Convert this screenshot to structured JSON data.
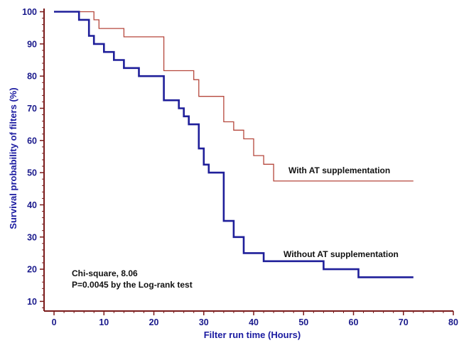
{
  "chart_data": {
    "type": "line",
    "title": "",
    "xlabel": "Filter run time (Hours)",
    "ylabel": "Survival probability of filters (%)",
    "xlim": [
      -2,
      80
    ],
    "ylim": [
      7,
      101
    ],
    "x_ticks": [
      0,
      10,
      20,
      30,
      40,
      50,
      60,
      70,
      80
    ],
    "y_ticks": [
      10,
      20,
      30,
      40,
      50,
      60,
      70,
      80,
      90,
      100
    ],
    "grid": false,
    "step": true,
    "series": [
      {
        "name": "With AT supplementation",
        "color": "#b5473c",
        "line_width": 1.3,
        "points": [
          [
            0,
            100
          ],
          [
            8,
            100
          ],
          [
            8,
            97.5
          ],
          [
            9,
            97.5
          ],
          [
            9,
            94.8
          ],
          [
            14,
            94.8
          ],
          [
            14,
            92.2
          ],
          [
            22,
            92.2
          ],
          [
            22,
            81.7
          ],
          [
            28,
            81.7
          ],
          [
            28,
            78.9
          ],
          [
            29,
            78.9
          ],
          [
            29,
            73.7
          ],
          [
            34,
            73.7
          ],
          [
            34,
            65.8
          ],
          [
            36,
            65.8
          ],
          [
            36,
            63.2
          ],
          [
            38,
            63.2
          ],
          [
            38,
            60.5
          ],
          [
            40,
            60.5
          ],
          [
            40,
            55.3
          ],
          [
            42,
            55.3
          ],
          [
            42,
            52.6
          ],
          [
            44,
            52.6
          ],
          [
            44,
            47.4
          ],
          [
            72,
            47.4
          ]
        ]
      },
      {
        "name": "Without AT supplementation",
        "color": "#1f1f9a",
        "line_width": 2.6,
        "points": [
          [
            0,
            100
          ],
          [
            5,
            100
          ],
          [
            5,
            97.5
          ],
          [
            7,
            97.5
          ],
          [
            7,
            92.5
          ],
          [
            8,
            92.5
          ],
          [
            8,
            90
          ],
          [
            10,
            90
          ],
          [
            10,
            87.5
          ],
          [
            12,
            87.5
          ],
          [
            12,
            85
          ],
          [
            14,
            85
          ],
          [
            14,
            82.5
          ],
          [
            17,
            82.5
          ],
          [
            17,
            80
          ],
          [
            22,
            80
          ],
          [
            22,
            72.5
          ],
          [
            25,
            72.5
          ],
          [
            25,
            70
          ],
          [
            26,
            70
          ],
          [
            26,
            67.5
          ],
          [
            27,
            67.5
          ],
          [
            27,
            65
          ],
          [
            29,
            65
          ],
          [
            29,
            57.5
          ],
          [
            30,
            57.5
          ],
          [
            30,
            52.5
          ],
          [
            31,
            52.5
          ],
          [
            31,
            50
          ],
          [
            34,
            50
          ],
          [
            34,
            35
          ],
          [
            36,
            35
          ],
          [
            36,
            30
          ],
          [
            38,
            30
          ],
          [
            38,
            25
          ],
          [
            42,
            25
          ],
          [
            42,
            22.5
          ],
          [
            54,
            22.5
          ],
          [
            54,
            20
          ],
          [
            61,
            20
          ],
          [
            61,
            17.5
          ],
          [
            72,
            17.5
          ]
        ]
      }
    ],
    "annotations": {
      "with_label": "With AT supplementation",
      "without_label": "Without AT supplementation",
      "stats_line1": "Chi-square, 8.06",
      "stats_line2": "P=0.0045 by the Log-rank test"
    },
    "colors": {
      "axis": "#7a1a1a",
      "tick_text": "#1a1a8c",
      "axis_title": "#1a1aa0",
      "annotation_text": "#111111"
    }
  }
}
